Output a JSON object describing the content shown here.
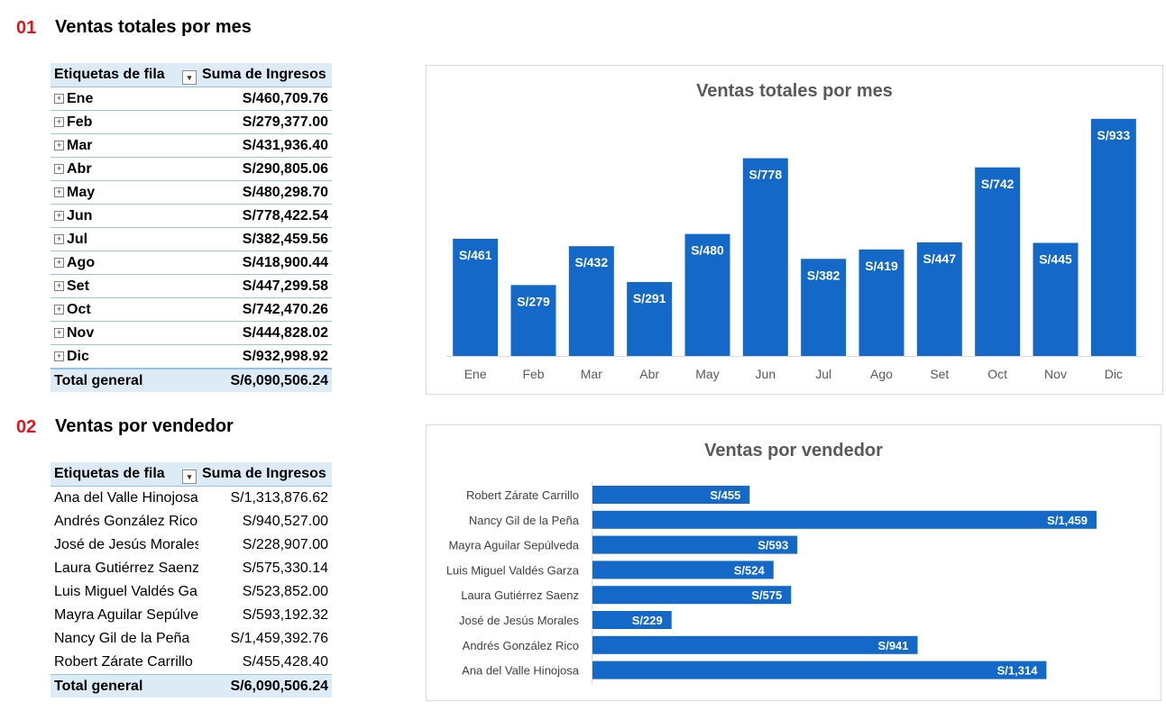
{
  "section1": {
    "num": "01",
    "title": "Ventas totales por mes"
  },
  "section2": {
    "num": "02",
    "title": "Ventas por vendedor"
  },
  "pivot1": {
    "header_col1": "Etiquetas de fila",
    "header_col2": "Suma de Ingresos",
    "rows": [
      {
        "label": "Ene",
        "value": "S/460,709.76"
      },
      {
        "label": "Feb",
        "value": "S/279,377.00"
      },
      {
        "label": "Mar",
        "value": "S/431,936.40"
      },
      {
        "label": "Abr",
        "value": "S/290,805.06"
      },
      {
        "label": "May",
        "value": "S/480,298.70"
      },
      {
        "label": "Jun",
        "value": "S/778,422.54"
      },
      {
        "label": "Jul",
        "value": "S/382,459.56"
      },
      {
        "label": "Ago",
        "value": "S/418,900.44"
      },
      {
        "label": "Set",
        "value": "S/447,299.58"
      },
      {
        "label": "Oct",
        "value": "S/742,470.26"
      },
      {
        "label": "Nov",
        "value": "S/444,828.02"
      },
      {
        "label": "Dic",
        "value": "S/932,998.92"
      }
    ],
    "total_label": "Total general",
    "total_value": "S/6,090,506.24"
  },
  "pivot2": {
    "header_col1": "Etiquetas de fila",
    "header_col2": "Suma de Ingresos",
    "rows": [
      {
        "label": "Ana del Valle Hinojosa",
        "value": "S/1,313,876.62"
      },
      {
        "label": "Andrés González Rico",
        "value": "S/940,527.00"
      },
      {
        "label": "José de Jesús Morales",
        "value": "S/228,907.00"
      },
      {
        "label": "Laura Gutiérrez Saenz",
        "value": "S/575,330.14"
      },
      {
        "label": "Luis Miguel Valdés Garza",
        "value": "S/523,852.00"
      },
      {
        "label": "Mayra Aguilar Sepúlveda",
        "value": "S/593,192.32"
      },
      {
        "label": "Nancy Gil de la Peña",
        "value": "S/1,459,392.76"
      },
      {
        "label": "Robert Zárate Carrillo",
        "value": "S/455,428.40"
      }
    ],
    "total_label": "Total general",
    "total_value": "S/6,090,506.24"
  },
  "colors": {
    "bar": "#1469c8",
    "accent": "#e0141b",
    "header_bg": "#ddebf7"
  },
  "chart_data": [
    {
      "type": "bar",
      "title": "Ventas totales por mes",
      "categories": [
        "Ene",
        "Feb",
        "Mar",
        "Abr",
        "May",
        "Jun",
        "Jul",
        "Ago",
        "Set",
        "Oct",
        "Nov",
        "Dic"
      ],
      "values": [
        461,
        279,
        432,
        291,
        480,
        778,
        382,
        419,
        447,
        742,
        445,
        933
      ],
      "data_labels": [
        "S/461",
        "S/279",
        "S/432",
        "S/291",
        "S/480",
        "S/778",
        "S/382",
        "S/419",
        "S/447",
        "S/742",
        "S/445",
        "S/933"
      ],
      "ylim": [
        0,
        1000
      ],
      "grid": false,
      "legend": "none"
    },
    {
      "type": "bar",
      "orientation": "horizontal",
      "title": "Ventas por vendedor",
      "categories": [
        "Robert Zárate Carrillo",
        "Nancy Gil de la Peña",
        "Mayra Aguilar Sepúlveda",
        "Luis Miguel Valdés Garza",
        "Laura Gutiérrez Saenz",
        "José de Jesús Morales",
        "Andrés González Rico",
        "Ana del Valle Hinojosa"
      ],
      "values": [
        455,
        1459,
        593,
        524,
        575,
        229,
        941,
        1314
      ],
      "data_labels": [
        "S/455",
        "S/1,459",
        "S/593",
        "S/524",
        "S/575",
        "S/229",
        "S/941",
        "S/1,314"
      ],
      "xlim": [
        0,
        1500
      ],
      "grid": false,
      "legend": "none"
    }
  ]
}
